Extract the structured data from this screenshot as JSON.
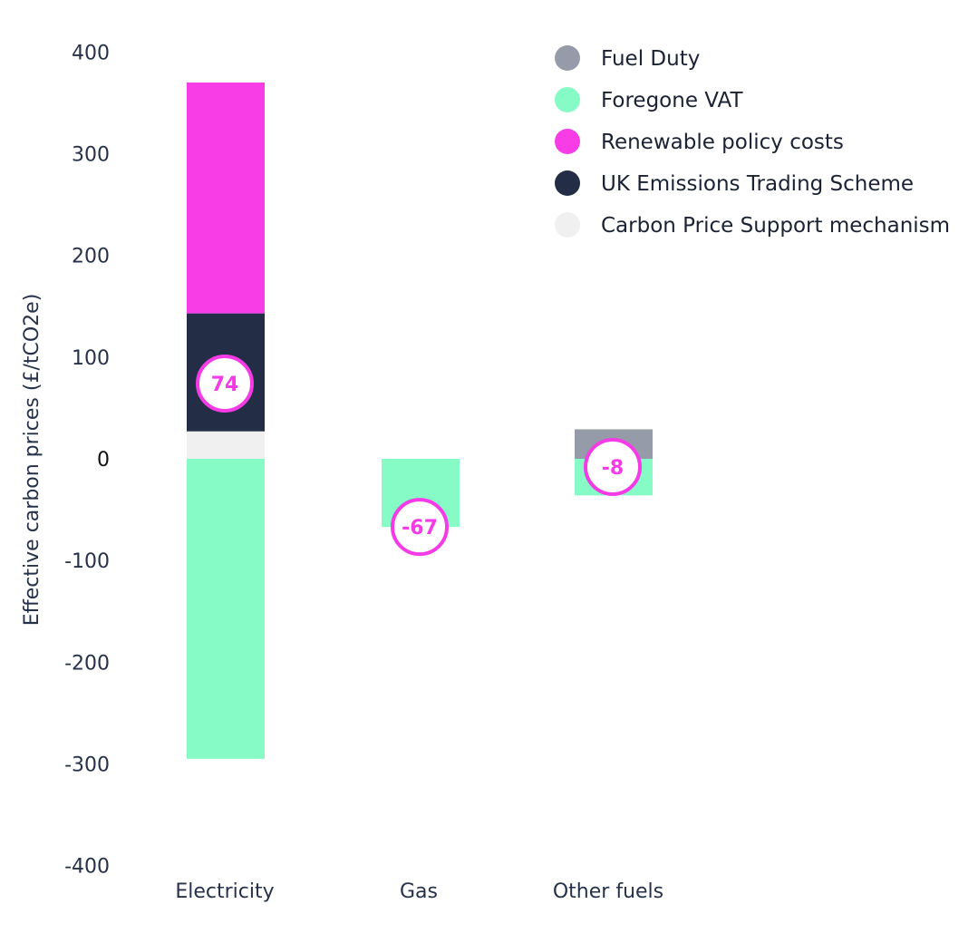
{
  "chart_data": {
    "type": "bar",
    "stacked": true,
    "ylabel": "Effective carbon prices (£/tCO2e)",
    "ylim": [
      -400,
      400
    ],
    "yticks": [
      400,
      300,
      200,
      100,
      0,
      -100,
      -200,
      -300,
      -400
    ],
    "ytick_labels": [
      "400",
      "300",
      "200",
      "100",
      "0",
      "-100",
      "-200",
      "-300",
      "-400"
    ],
    "categories": [
      "Electricity",
      "Gas",
      "Other fuels"
    ],
    "series": [
      {
        "name": "Fuel Duty",
        "color": "#959ba8",
        "values": [
          0,
          0,
          29
        ]
      },
      {
        "name": "Foregone VAT",
        "color": "#86fbc6",
        "values": [
          -295,
          -67,
          -36
        ]
      },
      {
        "name": "Renewable policy costs",
        "color": "#f83ce6",
        "values": [
          227,
          0,
          0
        ]
      },
      {
        "name": "UK Emissions Trading Scheme",
        "color": "#232e46",
        "values": [
          116,
          0,
          0
        ]
      },
      {
        "name": "Carbon Price Support mechanism",
        "color": "#f1f0f1",
        "values": [
          27,
          0,
          0
        ]
      }
    ],
    "stack_order": [
      "Carbon Price Support mechanism",
      "UK Emissions Trading Scheme",
      "Renewable policy costs",
      "Fuel Duty"
    ],
    "totals": [
      74,
      -67,
      -8
    ],
    "total_labels": [
      "74",
      "-67",
      "-8"
    ],
    "total_marker_color": "#f53be6",
    "legend_position": "top-right",
    "grid": false
  }
}
